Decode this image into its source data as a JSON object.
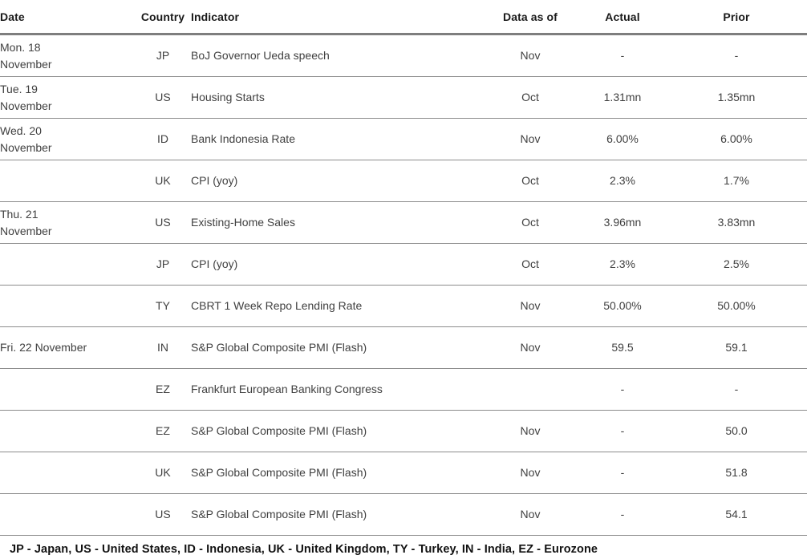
{
  "table": {
    "columns": {
      "date": {
        "label": "Date"
      },
      "country": {
        "label": "Country"
      },
      "indicator": {
        "label": "Indicator"
      },
      "as_of": {
        "label": "Data as of"
      },
      "actual": {
        "label": "Actual"
      },
      "prior": {
        "label": "Prior"
      }
    },
    "rows": [
      {
        "date_lines": [
          "Mon. 18",
          "November"
        ],
        "country": "JP",
        "indicator": "BoJ Governor Ueda speech",
        "as_of": "Nov",
        "actual": "-",
        "prior": "-"
      },
      {
        "date_lines": [
          "Tue. 19",
          "November"
        ],
        "country": "US",
        "indicator": "Housing Starts",
        "as_of": "Oct",
        "actual": "1.31mn",
        "prior": "1.35mn"
      },
      {
        "date_lines": [
          "Wed. 20",
          "November"
        ],
        "country": "ID",
        "indicator": "Bank Indonesia Rate",
        "as_of": "Nov",
        "actual": "6.00%",
        "prior": "6.00%"
      },
      {
        "date_lines": [],
        "country": "UK",
        "indicator": "CPI (yoy)",
        "as_of": "Oct",
        "actual": "2.3%",
        "prior": "1.7%"
      },
      {
        "date_lines": [
          "Thu. 21",
          "November"
        ],
        "country": "US",
        "indicator": "Existing-Home Sales",
        "as_of": "Oct",
        "actual": "3.96mn",
        "prior": "3.83mn"
      },
      {
        "date_lines": [],
        "country": "JP",
        "indicator": "CPI (yoy)",
        "as_of": "Oct",
        "actual": "2.3%",
        "prior": "2.5%"
      },
      {
        "date_lines": [],
        "country": "TY",
        "indicator": "CBRT 1 Week Repo Lending Rate",
        "as_of": "Nov",
        "actual": "50.00%",
        "prior": "50.00%"
      },
      {
        "date_lines": [
          "Fri. 22 November"
        ],
        "country": "IN",
        "indicator": "S&P Global Composite PMI (Flash)",
        "as_of": "Nov",
        "actual": "59.5",
        "prior": "59.1"
      },
      {
        "date_lines": [],
        "country": "EZ",
        "indicator": "Frankfurt European Banking Congress",
        "as_of": "",
        "actual": "-",
        "prior": "-"
      },
      {
        "date_lines": [],
        "country": "EZ",
        "indicator": "S&P Global Composite PMI (Flash)",
        "as_of": "Nov",
        "actual": "-",
        "prior": "50.0"
      },
      {
        "date_lines": [],
        "country": "UK",
        "indicator": "S&P Global Composite PMI (Flash)",
        "as_of": "Nov",
        "actual": "-",
        "prior": "51.8"
      },
      {
        "date_lines": [],
        "country": "US",
        "indicator": "S&P Global Composite PMI (Flash)",
        "as_of": "Nov",
        "actual": "-",
        "prior": "54.1"
      }
    ]
  },
  "footer": {
    "legend": "JP - Japan, US - United States, ID - Indonesia, UK - United Kingdom, TY - Turkey, IN - India, EZ - Eurozone"
  },
  "colors": {
    "header_rule": "#7e7e7e",
    "row_line_solid": "#8c8c8c",
    "row_line_dashed": "#979797",
    "body_text": "#404040",
    "heading_text": "#1a1a1a",
    "background": "#ffffff"
  }
}
